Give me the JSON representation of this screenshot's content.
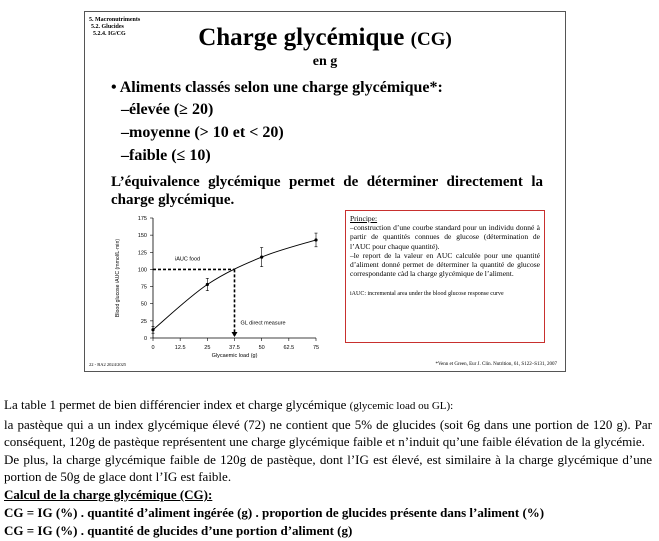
{
  "slide": {
    "breadcrumb": [
      "5. Macronutriments",
      "5.2. Glucides",
      "5.2.4. IG/CG"
    ],
    "title": "Charge glycémique",
    "title_abbr": "(CG)",
    "title_unit": "en g",
    "bullet": "Aliments classés selon une charge glycémique*:",
    "categories": [
      "–élevée (≥ 20)",
      "–moyenne (> 10 et < 20)",
      "–faible (≤ 10)"
    ],
    "equivalence": "L’équivalence glycémique permet de déterminer directement la",
    "equivalence_2": "charge glycémique.",
    "principe": {
      "heading": "Principe:",
      "item1": "–construction d’une courbe standard pour un individu donné à partir de quantités connues de glucose (détermination de l’AUC pour chaque quantité).",
      "item2": "–le report de la valeur en AUC calculée pour une quantité d’aliment donné permet de déterminer la quantité de glucose correspondante càd la charge glycémique de l’aliment.",
      "note": "iAUC: incremental area under the blood glucose response curve"
    },
    "footer_left": "22 - BA2 2024/2025",
    "footer_right": "*Venn et Green, Eur J. Clin. Nutrition, 61, S122–S131, 2007"
  },
  "chart_data": {
    "type": "line",
    "xlabel": "Glycaemic load (g)",
    "ylabel": "Blood glucose iAUC (mmol/L·min)",
    "x_ticks": [
      "0",
      "12.5",
      "25",
      "37.5",
      "50",
      "62.5",
      "75"
    ],
    "y_ticks": [
      "0",
      "25",
      "50",
      "75",
      "100",
      "125",
      "150",
      "175"
    ],
    "xlim": [
      0,
      75
    ],
    "ylim": [
      0,
      175
    ],
    "series": [
      {
        "x": [
          0,
          25,
          50,
          75
        ],
        "y": [
          12,
          78,
          118,
          143
        ],
        "error": [
          5,
          9,
          14,
          10
        ]
      }
    ],
    "annotations": {
      "auc_food_label": "iAUC food",
      "auc_food_y": 100,
      "gl_label": "GL direct measure",
      "gl_x": 37.5
    }
  },
  "body": {
    "p1": "La table 1 permet de bien différencier index et charge glycémique",
    "p1_small": "(glycemic load ou GL):",
    "p2": "la pastèque qui a un index glycémique élevé (72) ne contient que 5% de glucides (soit 6g dans une portion de 120 g). Par conséquent, 120g de pastèque représentent une charge glycémique faible et n’induit qu’une faible élévation de la glycémie.",
    "p3": "De plus, la charge glycémique faible de 120g de pastèque, dont l’IG est élevé, est similaire à la charge glycémique d’une portion de 50g de glace dont l’IG est faible.",
    "p4": "Calcul de la charge glycémique (CG):",
    "formula1": "CG = IG (%) . quantité d’aliment ingérée (g) . proportion de glucides présente dans l’aliment (%)",
    "formula2": "CG = IG (%) . quantité de glucides d’une portion d’aliment (g)"
  }
}
